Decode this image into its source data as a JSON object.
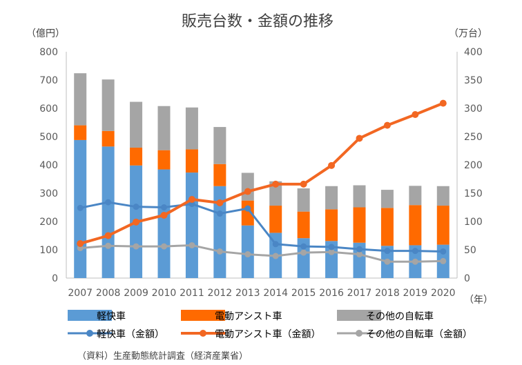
{
  "chart_data": {
    "type": "bar+line",
    "title": "販売台数・金額の推移",
    "left_axis_unit": "（億円）",
    "right_axis_unit": "（万台）",
    "x_axis_unit": "（年）",
    "categories": [
      "2007",
      "2008",
      "2009",
      "2010",
      "2011",
      "2012",
      "2013",
      "2014",
      "2015",
      "2016",
      "2017",
      "2018",
      "2019",
      "2020"
    ],
    "left_axis": {
      "min": 0,
      "max": 800,
      "ticks": [
        "0",
        "100",
        "200",
        "300",
        "400",
        "500",
        "600",
        "700",
        "800"
      ]
    },
    "right_axis": {
      "min": 0,
      "max": 400,
      "ticks": [
        "0",
        "50",
        "100",
        "150",
        "200",
        "250",
        "300",
        "350",
        "400"
      ]
    },
    "bar_series": [
      {
        "name": "軽快車",
        "axis": "left",
        "color": "#5b9bd5",
        "values": [
          488,
          465,
          398,
          384,
          373,
          325,
          186,
          160,
          141,
          131,
          125,
          114,
          116,
          118
        ]
      },
      {
        "name": "電動アシスト車",
        "axis": "left",
        "color": "#ff6a00",
        "values": [
          52,
          55,
          63,
          68,
          82,
          78,
          88,
          96,
          94,
          112,
          125,
          134,
          142,
          138
        ]
      },
      {
        "name": "その他の自転車",
        "axis": "left",
        "color": "#a5a5a5",
        "values": [
          184,
          182,
          162,
          156,
          148,
          131,
          98,
          86,
          82,
          82,
          78,
          64,
          68,
          69
        ]
      }
    ],
    "line_series": [
      {
        "name": "軽快車（金額）",
        "axis": "right",
        "color": "#4a86c5",
        "values": [
          124,
          134,
          126,
          125,
          131,
          114,
          123,
          60,
          56,
          55,
          51,
          48,
          48,
          47
        ]
      },
      {
        "name": "電動アシスト車（金額）",
        "axis": "right",
        "color": "#f26722",
        "values": [
          61,
          75,
          99,
          111,
          139,
          133,
          153,
          166,
          166,
          199,
          247,
          270,
          289,
          309
        ]
      },
      {
        "name": "その他の自転車（金額）",
        "axis": "right",
        "color": "#a5a5a5",
        "values": [
          53,
          57,
          56,
          56,
          58,
          47,
          42,
          39,
          45,
          46,
          42,
          29,
          29,
          30
        ]
      }
    ],
    "legend": [
      "軽快車",
      "電動アシスト車",
      "その他の自転車",
      "軽快車（金額）",
      "電動アシスト車（金額）",
      "その他の自転車（金額）"
    ],
    "legend_position": "bottom",
    "grid": false
  },
  "source_note": "（資料）生産動態統計調査（経済産業省）"
}
